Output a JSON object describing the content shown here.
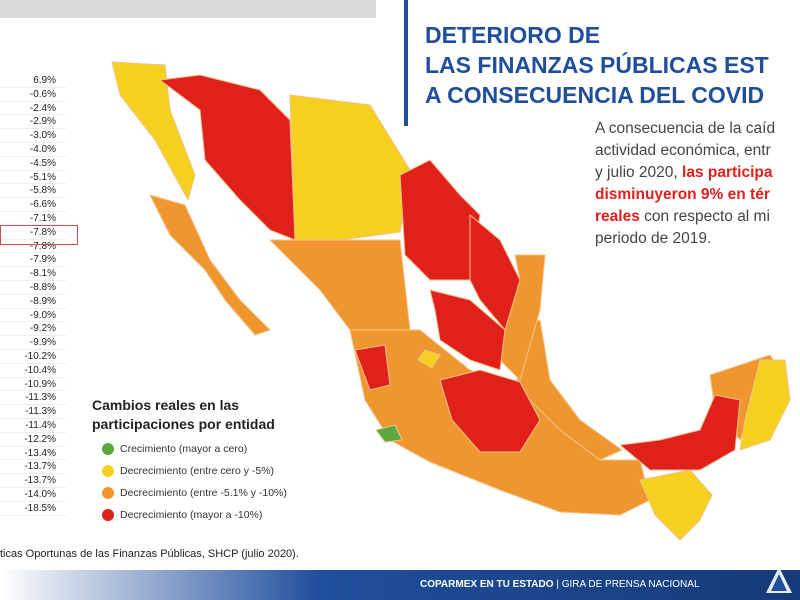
{
  "header": {
    "title_lines": [
      "DETERIORO DE",
      "LAS FINANZAS PÚBLICAS EST",
      "A CONSECUENCIA DEL COVID"
    ]
  },
  "summary": {
    "line1": "A consecuencia de la caíd",
    "line2": "actividad económica, entr",
    "line3": "y julio 2020, ",
    "line3_bold": "las participa",
    "line4_bold": "disminuyeron 9% en tér",
    "line5_bold": "reales",
    "line5": " con respecto al mi",
    "line6": "periodo de 2019."
  },
  "table": {
    "rows": [
      "6.9%",
      "-0.6%",
      "-2.4%",
      "-2.9%",
      "-3.0%",
      "-4.0%",
      "-4.5%",
      "-5.1%",
      "-5.8%",
      "-6.6%",
      "-7.1%",
      "-7.8%",
      "-7.8%",
      "-7.9%",
      "-8.1%",
      "-8.8%",
      "-8.9%",
      "-9.0%",
      "-9.2%",
      "-9.9%",
      "-10.2%",
      "-10.4%",
      "-10.9%",
      "-11.3%",
      "-11.3%",
      "-11.4%",
      "-12.2%",
      "-13.4%",
      "-13.7%",
      "-13.7%",
      "-14.0%",
      "-18.5%"
    ]
  },
  "legend": {
    "title_lines": [
      "Cambios reales en las",
      "participaciones por entidad"
    ],
    "items": [
      {
        "label": "Crecimiento (mayor a cero)",
        "color": "#5aa83e"
      },
      {
        "label": "Decrecimiento (entre cero y -5%)",
        "color": "#f5d020"
      },
      {
        "label": "Decrecimiento (entre -5.1% y -10%)",
        "color": "#f0962e"
      },
      {
        "label": "Decrecimiento (mayor a -10%)",
        "color": "#e0201b"
      }
    ]
  },
  "source": "ticas Oportunas de las Finanzas Públicas, SHCP (julio 2020).",
  "footer": {
    "bold": "COPARMEX EN TU ESTADO",
    "rest": "| GIRA DE PRENSA NACIONAL"
  }
}
